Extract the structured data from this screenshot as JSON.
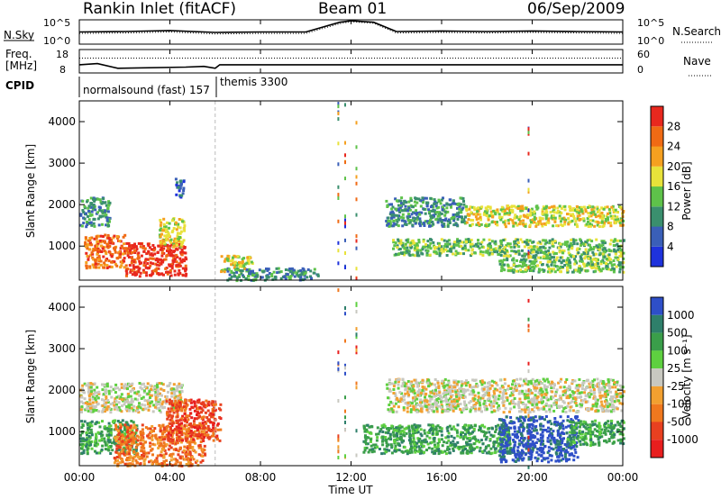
{
  "header": {
    "station": "Rankin Inlet (fitACF)",
    "beam": "Beam 01",
    "date": "06/Sep/2009"
  },
  "top_panels": {
    "nsky_label": "N.Sky",
    "nsky_ticks": [
      "10^5",
      "10^0"
    ],
    "nsearch_label": "N.Search",
    "nsearch_ticks": [
      "10^5",
      "10^0"
    ],
    "freq_label": "Freq.",
    "freq_unit": "[MHz]",
    "freq_ticks": [
      "18",
      "8"
    ],
    "nave_label": "Nave",
    "nave_ticks": [
      "60",
      "0"
    ],
    "cpid_label": "CPID",
    "cpid_entries": [
      {
        "label": "normalsound (fast) 157",
        "start_hour": 0
      },
      {
        "label": "themis 3300",
        "start_hour": 6
      }
    ]
  },
  "x_axis": {
    "label": "Time UT",
    "ticks": [
      "00:00",
      "04:00",
      "08:00",
      "12:00",
      "16:00",
      "20:00",
      "00:00"
    ],
    "tick_hours": [
      0,
      4,
      8,
      12,
      16,
      20,
      24
    ]
  },
  "power_panel": {
    "ylabel": "Slant Range [km]",
    "yticks": [
      "1000",
      "2000",
      "3000",
      "4000"
    ],
    "ytick_values": [
      1000,
      2000,
      3000,
      4000
    ],
    "colorbar_label": "Power [dB]",
    "colorbar_ticks": [
      "4",
      "8",
      "12",
      "16",
      "20",
      "24",
      "28"
    ],
    "colorbar_colors": [
      "#1e32dc",
      "#3a5fb8",
      "#3a8f6e",
      "#5ec24a",
      "#e8e23a",
      "#f5a020",
      "#f06a14",
      "#e8281e"
    ]
  },
  "velocity_panel": {
    "ylabel": "Slant Range [km]",
    "yticks": [
      "1000",
      "2000",
      "3000",
      "4000"
    ],
    "ytick_values": [
      1000,
      2000,
      3000,
      4000
    ],
    "colorbar_label": "Velocity [m s⁻¹]",
    "colorbar_ticks": [
      "1000",
      "500",
      "100",
      "25",
      "-25",
      "-100",
      "-500",
      "-1000"
    ],
    "colorbar_colors": [
      "#2e4fc8",
      "#2e7f6a",
      "#3a9e4a",
      "#5ed040",
      "#c8c8c0",
      "#f2a030",
      "#f0781e",
      "#e84020",
      "#e81e1e"
    ]
  },
  "chart_data": [
    {
      "type": "line",
      "title": "N.Sky / N.Search",
      "x": [
        0,
        2,
        4,
        6,
        8,
        10,
        11.5,
        12,
        13,
        14,
        16,
        18,
        20,
        22,
        24
      ],
      "series": [
        {
          "name": "N.Sky",
          "values": [
            2.5,
            2.6,
            2.8,
            2.4,
            2.5,
            2.5,
            4.5,
            4.8,
            4.5,
            2.6,
            2.7,
            2.6,
            2.7,
            2.6,
            2.5
          ]
        },
        {
          "name": "N.Search",
          "values": [
            2.2,
            2.3,
            2.5,
            2.1,
            2.2,
            2.2,
            4.2,
            4.6,
            4.3,
            2.3,
            2.4,
            2.3,
            2.4,
            2.3,
            2.2
          ]
        }
      ],
      "xlim": [
        0,
        24
      ],
      "ylim": [
        0,
        5
      ]
    },
    {
      "type": "line",
      "title": "Freq. / Nave",
      "x": [
        0,
        0.8,
        1.7,
        4.7,
        5.5,
        6.0,
        6.2,
        24
      ],
      "series": [
        {
          "name": "Freq.",
          "values": [
            11.5,
            12,
            10,
            10.5,
            10.8,
            10,
            11.5,
            11.5
          ]
        },
        {
          "name": "Nave",
          "values": [
            38,
            38,
            38,
            38,
            38,
            38,
            38,
            38
          ]
        }
      ],
      "xlim": [
        0,
        24
      ],
      "ylim": [
        8,
        18
      ]
    },
    {
      "type": "heatmap",
      "title": "Power [dB]",
      "xlabel": "Time UT",
      "ylabel": "Slant Range [km]",
      "xlim": [
        0,
        24
      ],
      "ylim": [
        180,
        4500
      ],
      "blobs": [
        {
          "t": 0.2,
          "t2": 2.0,
          "r": 500,
          "r2": 1300,
          "level": 6
        },
        {
          "t": 2.0,
          "t2": 4.7,
          "r": 300,
          "r2": 1100,
          "level": 7
        },
        {
          "t": 3.5,
          "t2": 4.6,
          "r": 1000,
          "r2": 1700,
          "level": 4
        },
        {
          "t": 0.0,
          "t2": 1.3,
          "r": 1500,
          "r2": 2200,
          "level": 2
        },
        {
          "t": 4.2,
          "t2": 4.6,
          "r": 2200,
          "r2": 2700,
          "level": 1
        },
        {
          "t": 6.2,
          "t2": 7.6,
          "r": 400,
          "r2": 800,
          "level": 4
        },
        {
          "t": 6.5,
          "t2": 10.5,
          "r": 200,
          "r2": 500,
          "level": 2
        },
        {
          "t": 13.5,
          "t2": 17.0,
          "r": 1500,
          "r2": 2200,
          "level": 2
        },
        {
          "t": 17.0,
          "t2": 24.0,
          "r": 1500,
          "r2": 2000,
          "level": 4
        },
        {
          "t": 13.8,
          "t2": 18.8,
          "r": 800,
          "r2": 1200,
          "level": 3
        },
        {
          "t": 18.5,
          "t2": 24.0,
          "r": 400,
          "r2": 1200,
          "level": 3
        }
      ]
    },
    {
      "type": "heatmap",
      "title": "Velocity [m s⁻¹]",
      "xlabel": "Time UT",
      "ylabel": "Slant Range [km]",
      "xlim": [
        0,
        24
      ],
      "ylim": [
        180,
        4500
      ],
      "blobs": [
        {
          "t": 0.0,
          "t2": 4.5,
          "r": 1500,
          "r2": 2200,
          "level": 4
        },
        {
          "t": 0.0,
          "t2": 2.5,
          "r": 500,
          "r2": 1300,
          "level": 6
        },
        {
          "t": 1.5,
          "t2": 5.5,
          "r": 200,
          "r2": 1200,
          "level": 2
        },
        {
          "t": 3.8,
          "t2": 6.2,
          "r": 800,
          "r2": 1800,
          "level": 1
        },
        {
          "t": 13.5,
          "t2": 24.0,
          "r": 1500,
          "r2": 2300,
          "level": 4
        },
        {
          "t": 12.5,
          "t2": 19.0,
          "r": 500,
          "r2": 1200,
          "level": 6
        },
        {
          "t": 18.5,
          "t2": 22.0,
          "r": 300,
          "r2": 1400,
          "level": 8
        },
        {
          "t": 21.5,
          "t2": 24.0,
          "r": 700,
          "r2": 1300,
          "level": 6
        }
      ]
    }
  ]
}
